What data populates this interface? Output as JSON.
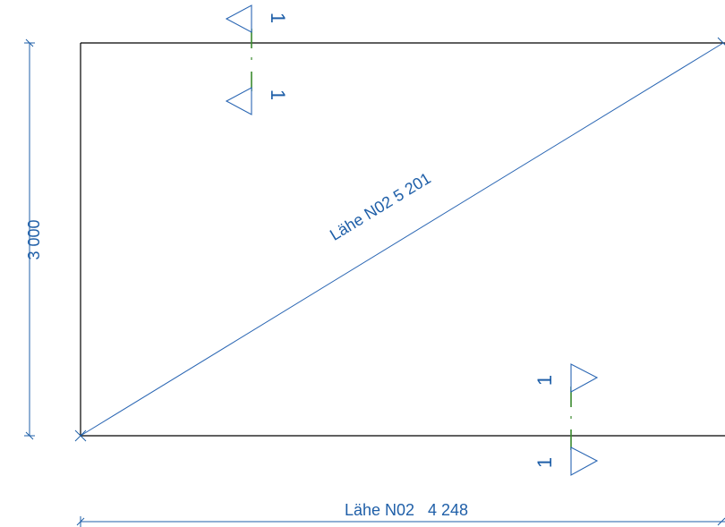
{
  "dimensions": {
    "vertical_label": "3 000",
    "horizontal_label": "Lähe N02   4 248",
    "diagonal_label": "Lähe N02   5 201"
  },
  "section_markers": {
    "top_upper_label": "1",
    "top_lower_label": "1",
    "bottom_upper_label": "1",
    "bottom_lower_label": "1"
  },
  "colors": {
    "outline": "#000000",
    "dimension": "#1f5fa8",
    "section_line": "#3b8a2e"
  }
}
